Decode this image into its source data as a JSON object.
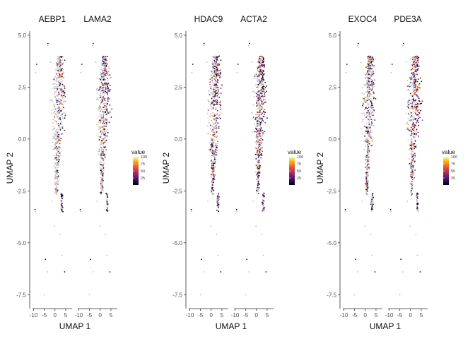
{
  "colors": {
    "background": "#ffffff",
    "axis": "#333333",
    "text": "#111111",
    "unexpressed": "#bebebe",
    "scale": [
      "#000004",
      "#2c0b57",
      "#6a176e",
      "#a52c60",
      "#d44842",
      "#f37819",
      "#fbbc21",
      "#fcffa4"
    ]
  },
  "chart_data": [
    {
      "type": "scatter",
      "facets": [
        "AEBP1",
        "LAMA2"
      ],
      "xlabel": "UMAP 1",
      "ylabel": "UMAP 2",
      "xticks": [
        -10,
        -5,
        0,
        5
      ],
      "yticks": [
        5.0,
        2.5,
        0.0,
        -2.5,
        -5.0,
        -7.5
      ],
      "ytick_labels": [
        "5.0",
        "2.5",
        "0.0",
        "-2.5",
        "-5.0",
        "-7.5"
      ],
      "xlim": [
        -10.5,
        8
      ],
      "ylim": [
        -8,
        5.2
      ],
      "legend": {
        "title": "value",
        "ticks": [
          100,
          75,
          50,
          25
        ],
        "range": [
          0,
          100
        ],
        "position": "right"
      },
      "expression_bias": [
        0.0,
        0.55
      ],
      "grid": false
    },
    {
      "type": "scatter",
      "facets": [
        "HDAC9",
        "ACTA2"
      ],
      "xlabel": "UMAP 1",
      "ylabel": "UMAP 2",
      "xticks": [
        -10,
        -5,
        0,
        5
      ],
      "yticks": [
        5.0,
        2.5,
        0.0,
        -2.5,
        -5.0,
        -7.5
      ],
      "ytick_labels": [
        "5.0",
        "2.5",
        "0.0",
        "-2.5",
        "-5.0",
        "-7.5"
      ],
      "xlim": [
        -10.5,
        8
      ],
      "ylim": [
        -8,
        5.2
      ],
      "legend": {
        "title": "value",
        "ticks": [
          100,
          75,
          50,
          25
        ],
        "range": [
          0,
          100
        ],
        "position": "right"
      },
      "expression_bias": [
        0.5,
        0.9
      ],
      "grid": false
    },
    {
      "type": "scatter",
      "facets": [
        "EXOC4",
        "PDE3A"
      ],
      "xlabel": "UMAP 1",
      "ylabel": "UMAP 2",
      "xticks": [
        -10,
        -5,
        0,
        5
      ],
      "yticks": [
        5.0,
        2.5,
        0.0,
        -2.5,
        -5.0,
        -7.5
      ],
      "ytick_labels": [
        "5.0",
        "2.5",
        "0.0",
        "-2.5",
        "-5.0",
        "-7.5"
      ],
      "xlim": [
        -10.5,
        8
      ],
      "ylim": [
        -8,
        5.2
      ],
      "legend": {
        "title": "value",
        "ticks": [
          100,
          75,
          50,
          25
        ],
        "range": [
          0,
          100
        ],
        "position": "right"
      },
      "expression_bias": [
        0.3,
        0.7
      ],
      "grid": false
    }
  ]
}
